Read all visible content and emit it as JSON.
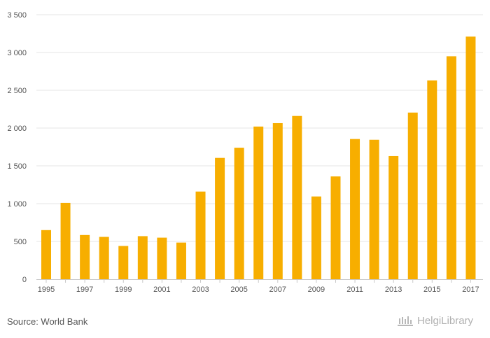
{
  "chart_data": {
    "type": "bar",
    "categories": [
      "1995",
      "1996",
      "1997",
      "1998",
      "1999",
      "2000",
      "2001",
      "2002",
      "2003",
      "2004",
      "2005",
      "2006",
      "2007",
      "2008",
      "2009",
      "2010",
      "2011",
      "2012",
      "2013",
      "2014",
      "2015",
      "2016",
      "2017"
    ],
    "x_tick_labels": [
      "1995",
      "1997",
      "1999",
      "2001",
      "2003",
      "2005",
      "2007",
      "2009",
      "2011",
      "2013",
      "2015",
      "2017"
    ],
    "values": [
      650,
      1010,
      585,
      560,
      440,
      570,
      550,
      485,
      1160,
      1605,
      1740,
      2020,
      2065,
      2160,
      1095,
      1360,
      1855,
      1845,
      1630,
      2205,
      2630,
      2950,
      3210
    ],
    "ylim": [
      0,
      3500
    ],
    "y_ticks": [
      0,
      500,
      1000,
      1500,
      2000,
      2500,
      3000,
      3500
    ],
    "y_tick_labels": [
      "0",
      "500",
      "1 000",
      "1 500",
      "2 000",
      "2 500",
      "3 000",
      "3 500"
    ],
    "grid": true,
    "bar_color": "#f7ae00",
    "grid_color": "#e6e6e6"
  },
  "footer": {
    "source": "Source: World Bank",
    "logo": "HelgiLibrary"
  }
}
